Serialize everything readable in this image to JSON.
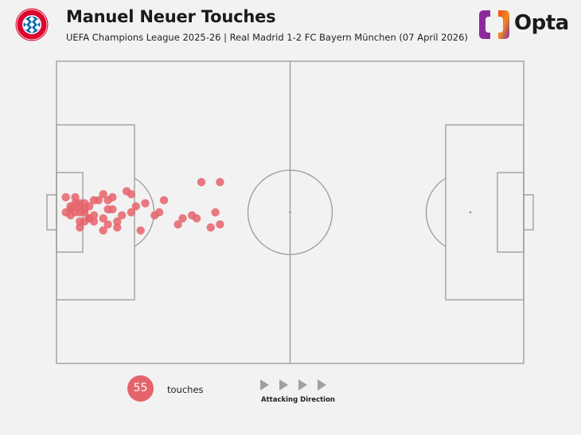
{
  "header": {
    "title": "Manuel Neuer Touches",
    "subtitle": "UEFA Champions League 2025-26 | Real Madrid 1-2 FC Bayern München (07 April 2026)",
    "crest_icon": "fc-bayern-munchen-crest-icon",
    "crest_text": "FC BAYERN MÜNCHEN",
    "brand": "Opta",
    "brand_icon": "opta-logo-icon"
  },
  "chart_data": {
    "type": "scatter",
    "title": "Manuel Neuer Touches",
    "subtitle": "UEFA Champions League 2025-26 | Real Madrid 1-2 FC Bayern München (07 April 2026)",
    "xlim": [
      0,
      100
    ],
    "ylim": [
      0,
      100
    ],
    "marker_color": "#e5646b",
    "x": [
      4,
      5,
      2,
      3,
      4,
      2,
      3,
      5,
      6,
      7,
      8,
      5,
      11,
      13,
      10,
      16,
      14,
      18,
      21,
      22,
      27,
      30,
      35,
      33,
      34,
      29,
      31,
      35,
      19,
      23,
      26,
      13,
      15,
      11,
      16,
      12,
      17,
      10,
      9,
      11,
      7,
      5,
      6,
      8,
      10,
      12,
      3,
      4,
      6,
      8,
      7,
      5,
      4,
      6,
      3
    ],
    "y": [
      55,
      53,
      55,
      51,
      52,
      50,
      52,
      50,
      50,
      48,
      47,
      45,
      46,
      47,
      44,
      50,
      49,
      44,
      49,
      50,
      48,
      48,
      46,
      45,
      50,
      49,
      60,
      60,
      53,
      54,
      46,
      45,
      57,
      54,
      56,
      51,
      52,
      48,
      54,
      51,
      52,
      52,
      53,
      54,
      56,
      55,
      49,
      50,
      51,
      49,
      48,
      47,
      53,
      47,
      51
    ],
    "total_touches": 55,
    "count_label": "touches",
    "direction_label": "Attacking Direction"
  }
}
